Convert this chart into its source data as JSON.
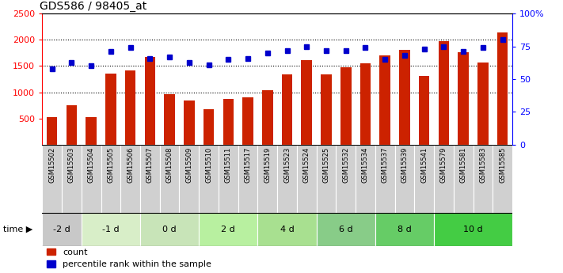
{
  "title": "GDS586 / 98405_at",
  "samples": [
    "GSM15502",
    "GSM15503",
    "GSM15504",
    "GSM15505",
    "GSM15506",
    "GSM15507",
    "GSM15508",
    "GSM15509",
    "GSM15510",
    "GSM15511",
    "GSM15517",
    "GSM15519",
    "GSM15523",
    "GSM15524",
    "GSM15525",
    "GSM15532",
    "GSM15534",
    "GSM15537",
    "GSM15539",
    "GSM15541",
    "GSM15579",
    "GSM15581",
    "GSM15583",
    "GSM15585"
  ],
  "counts": [
    530,
    750,
    520,
    1360,
    1420,
    1670,
    970,
    840,
    670,
    870,
    910,
    1040,
    1340,
    1610,
    1340,
    1480,
    1560,
    1700,
    1810,
    1310,
    1980,
    1760,
    1570,
    2140
  ],
  "percentiles": [
    58,
    63,
    60,
    71,
    74,
    66,
    67,
    63,
    61,
    65,
    66,
    70,
    72,
    75,
    72,
    72,
    74,
    65,
    68,
    73,
    75,
    71,
    74,
    80
  ],
  "time_groups": [
    {
      "label": "-2 d",
      "start": 0,
      "end": 2,
      "color": "#c8c8c8"
    },
    {
      "label": "-1 d",
      "start": 2,
      "end": 5,
      "color": "#d8eec8"
    },
    {
      "label": "0 d",
      "start": 5,
      "end": 8,
      "color": "#c8e4b8"
    },
    {
      "label": "2 d",
      "start": 8,
      "end": 11,
      "color": "#b8f0a0"
    },
    {
      "label": "4 d",
      "start": 11,
      "end": 14,
      "color": "#a8e090"
    },
    {
      "label": "6 d",
      "start": 14,
      "end": 17,
      "color": "#88cc88"
    },
    {
      "label": "8 d",
      "start": 17,
      "end": 20,
      "color": "#66cc66"
    },
    {
      "label": "10 d",
      "start": 20,
      "end": 24,
      "color": "#44cc44"
    }
  ],
  "bar_color": "#cc2200",
  "dot_color": "#0000cc",
  "left_ylim": [
    0,
    2500
  ],
  "right_ylim": [
    0,
    100
  ],
  "left_yticks": [
    500,
    1000,
    1500,
    2000,
    2500
  ],
  "right_yticks": [
    0,
    25,
    50,
    75,
    100
  ],
  "right_yticklabels": [
    "0",
    "25",
    "50",
    "75",
    "100%"
  ],
  "legend_red_label": "count",
  "legend_blue_label": "percentile rank within the sample"
}
